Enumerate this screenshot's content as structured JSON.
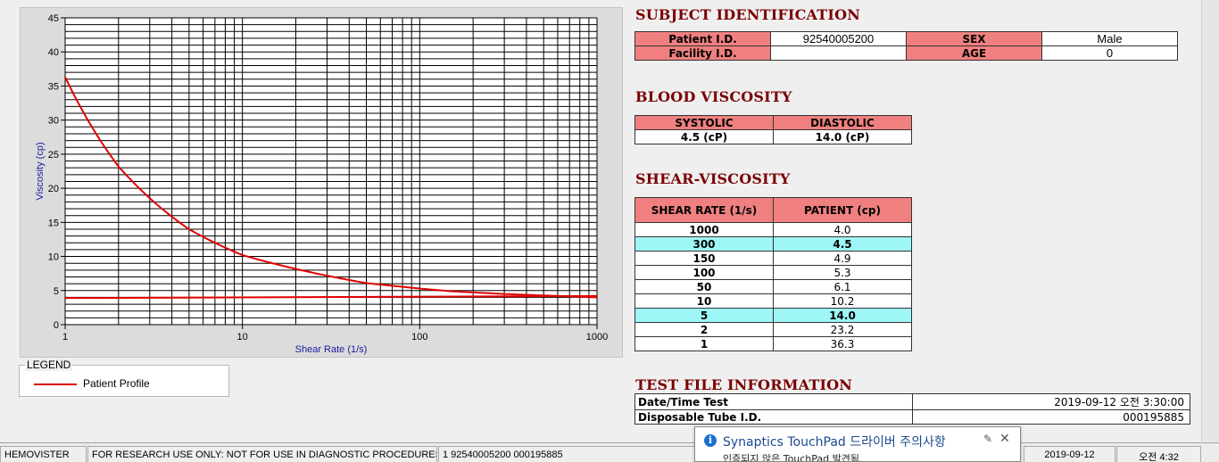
{
  "chart_data": {
    "type": "line",
    "xlabel": "Shear Rate (1/s)",
    "ylabel": "Viscosity (cp)",
    "x_scale": "log",
    "xlim": [
      1,
      1000
    ],
    "ylim": [
      0,
      45
    ],
    "xticks": [
      "1",
      "10",
      "100",
      "1000"
    ],
    "yticks": [
      "0",
      "5",
      "10",
      "15",
      "20",
      "25",
      "30",
      "35",
      "40",
      "45"
    ],
    "grid": true,
    "series": [
      {
        "name": "Patient Profile",
        "color": "#e00000",
        "x": [
          1,
          2,
          5,
          10,
          50,
          100,
          150,
          300,
          1000
        ],
        "y": [
          36.3,
          23.2,
          14.0,
          10.2,
          6.1,
          5.3,
          4.9,
          4.5,
          4.0
        ]
      },
      {
        "color": "#e00000",
        "x": [
          1,
          1000
        ],
        "y": [
          3.9,
          4.2
        ]
      }
    ]
  },
  "legend": {
    "title": "LEGEND",
    "label": "Patient Profile"
  },
  "subject": {
    "title": "SUBJECT IDENTIFICATION",
    "patient_id_label": "Patient I.D.",
    "patient_id": "92540005200",
    "sex_label": "SEX",
    "sex": "Male",
    "facility_id_label": "Facility I.D.",
    "facility_id": "",
    "age_label": "AGE",
    "age": "0"
  },
  "blood_viscosity": {
    "title": "BLOOD VISCOSITY",
    "systolic_label": "SYSTOLIC",
    "diastolic_label": "DIASTOLIC",
    "systolic": "4.5 (cP)",
    "diastolic": "14.0 (cP)"
  },
  "shear_viscosity": {
    "title": "SHEAR-VISCOSITY",
    "col_rate": "SHEAR RATE (1/s)",
    "col_patient": "PATIENT (cp)",
    "rows": [
      {
        "rate": "1000",
        "value": "4.0"
      },
      {
        "rate": "300",
        "value": "4.5"
      },
      {
        "rate": "150",
        "value": "4.9"
      },
      {
        "rate": "100",
        "value": "5.3"
      },
      {
        "rate": "50",
        "value": "6.1"
      },
      {
        "rate": "10",
        "value": "10.2"
      },
      {
        "rate": "5",
        "value": "14.0"
      },
      {
        "rate": "2",
        "value": "23.2"
      },
      {
        "rate": "1",
        "value": "36.3"
      }
    ]
  },
  "test_file": {
    "title": "TEST FILE INFORMATION",
    "datetime_label": "Date/Time Test",
    "datetime": "2019-09-12   오전 3:30:00",
    "tube_label": "Disposable Tube I.D.",
    "tube": "000195885"
  },
  "status": {
    "app": "HEMOVISTER",
    "notice": "FOR RESEARCH USE ONLY: NOT FOR USE IN DIAGNOSTIC PROCEDURES",
    "record": "1  92540005200  000195885",
    "date": "2019-09-12",
    "time": "오전 4:32"
  },
  "toast": {
    "title": "Synaptics TouchPad 드라이버 주의사항",
    "body": "인증되지 않은 TouchPad 발견됨."
  }
}
